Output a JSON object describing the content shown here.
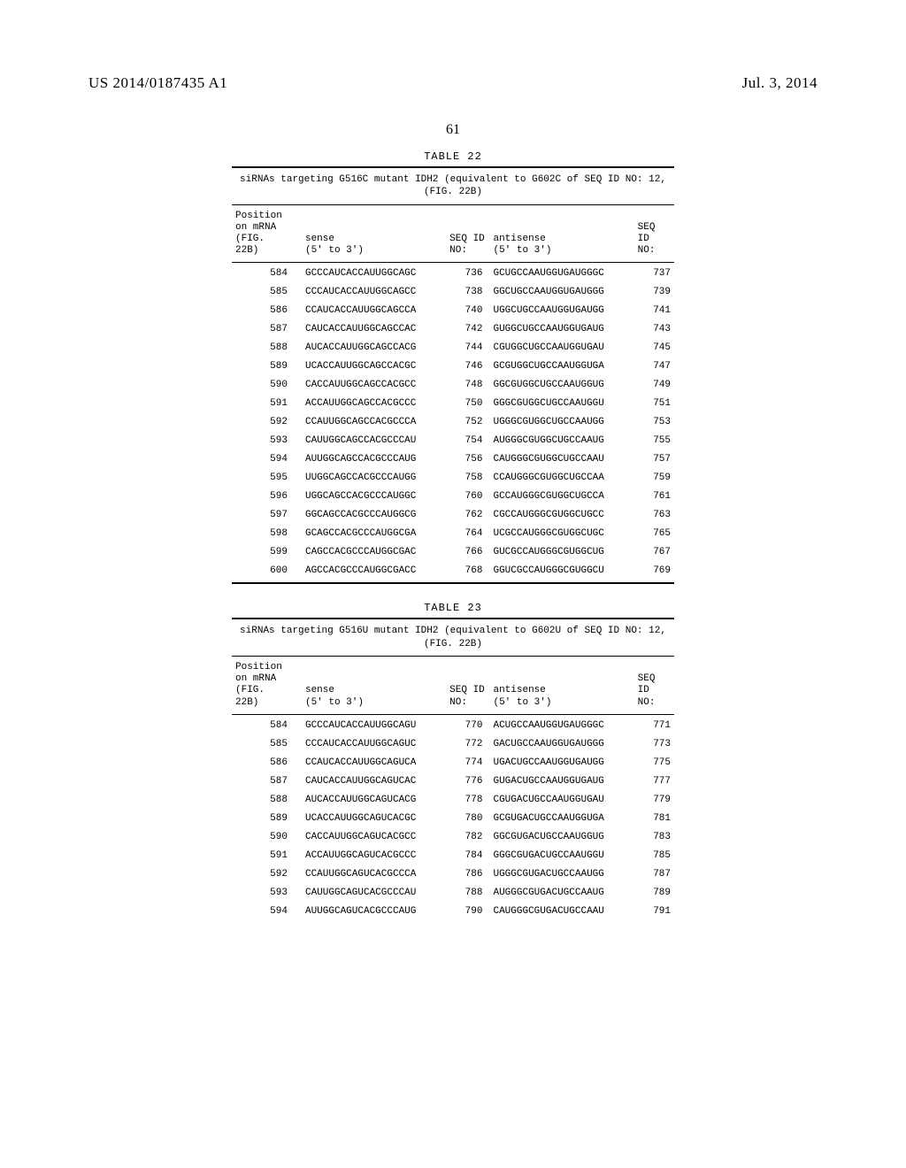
{
  "header": {
    "pub_number": "US 2014/0187435 A1",
    "pub_date": "Jul. 3, 2014"
  },
  "page_number": "61",
  "tables": [
    {
      "title": "TABLE 22",
      "caption": "siRNAs targeting G516C mutant IDH2 (equivalent to G602C of SEQ ID NO: 12, (FIG. 22B)",
      "headers": {
        "pos": "Position\non mRNA\n(FIG.\n22B)",
        "sense": "sense\n(5' to 3')",
        "seqid1": "SEQ ID\nNO:",
        "anti": "antisense\n(5' to 3')",
        "seqid2": "SEQ ID\nNO:"
      },
      "rows": [
        {
          "pos": "584",
          "sense": "GCCCAUCACCAUUGGCAGC",
          "sid1": "736",
          "anti": "GCUGCCAAUGGUGAUGGGC",
          "sid2": "737"
        },
        {
          "pos": "585",
          "sense": "CCCAUCACCAUUGGCAGCC",
          "sid1": "738",
          "anti": "GGCUGCCAAUGGUGAUGGG",
          "sid2": "739"
        },
        {
          "pos": "586",
          "sense": "CCAUCACCAUUGGCAGCCA",
          "sid1": "740",
          "anti": "UGGCUGCCAAUGGUGAUGG",
          "sid2": "741"
        },
        {
          "pos": "587",
          "sense": "CAUCACCAUUGGCAGCCAC",
          "sid1": "742",
          "anti": "GUGGCUGCCAAUGGUGAUG",
          "sid2": "743"
        },
        {
          "pos": "588",
          "sense": "AUCACCAUUGGCAGCCACG",
          "sid1": "744",
          "anti": "CGUGGCUGCCAAUGGUGAU",
          "sid2": "745"
        },
        {
          "pos": "589",
          "sense": "UCACCAUUGGCAGCCACGC",
          "sid1": "746",
          "anti": "GCGUGGCUGCCAAUGGUGA",
          "sid2": "747"
        },
        {
          "pos": "590",
          "sense": "CACCAUUGGCAGCCACGCC",
          "sid1": "748",
          "anti": "GGCGUGGCUGCCAAUGGUG",
          "sid2": "749"
        },
        {
          "pos": "591",
          "sense": "ACCAUUGGCAGCCACGCCC",
          "sid1": "750",
          "anti": "GGGCGUGGCUGCCAAUGGU",
          "sid2": "751"
        },
        {
          "pos": "592",
          "sense": "CCAUUGGCAGCCACGCCCA",
          "sid1": "752",
          "anti": "UGGGCGUGGCUGCCAAUGG",
          "sid2": "753"
        },
        {
          "pos": "593",
          "sense": "CAUUGGCAGCCACGCCCAU",
          "sid1": "754",
          "anti": "AUGGGCGUGGCUGCCAAUG",
          "sid2": "755"
        },
        {
          "pos": "594",
          "sense": "AUUGGCAGCCACGCCCAUG",
          "sid1": "756",
          "anti": "CAUGGGCGUGGCUGCCAAU",
          "sid2": "757"
        },
        {
          "pos": "595",
          "sense": "UUGGCAGCCACGCCCAUGG",
          "sid1": "758",
          "anti": "CCAUGGGCGUGGCUGCCAA",
          "sid2": "759"
        },
        {
          "pos": "596",
          "sense": "UGGCAGCCACGCCCAUGGC",
          "sid1": "760",
          "anti": "GCCAUGGGCGUGGCUGCCA",
          "sid2": "761"
        },
        {
          "pos": "597",
          "sense": "GGCAGCCACGCCCAUGGCG",
          "sid1": "762",
          "anti": "CGCCAUGGGCGUGGCUGCC",
          "sid2": "763"
        },
        {
          "pos": "598",
          "sense": "GCAGCCACGCCCAUGGCGA",
          "sid1": "764",
          "anti": "UCGCCAUGGGCGUGGCUGC",
          "sid2": "765"
        },
        {
          "pos": "599",
          "sense": "CAGCCACGCCCAUGGCGAC",
          "sid1": "766",
          "anti": "GUCGCCAUGGGCGUGGCUG",
          "sid2": "767"
        },
        {
          "pos": "600",
          "sense": "AGCCACGCCCAUGGCGACC",
          "sid1": "768",
          "anti": "GGUCGCCAUGGGCGUGGCU",
          "sid2": "769"
        }
      ],
      "closed": true
    },
    {
      "title": "TABLE 23",
      "caption": "siRNAs targeting G516U mutant IDH2 (equivalent to G602U of SEQ ID NO: 12, (FIG. 22B)",
      "headers": {
        "pos": "Position\non mRNA\n(FIG.\n22B)",
        "sense": "sense\n(5' to 3')",
        "seqid1": "SEQ ID\nNO:",
        "anti": "antisense\n(5' to 3')",
        "seqid2": "SEQ ID\nNO:"
      },
      "rows": [
        {
          "pos": "584",
          "sense": "GCCCAUCACCAUUGGCAGU",
          "sid1": "770",
          "anti": "ACUGCCAAUGGUGAUGGGC",
          "sid2": "771"
        },
        {
          "pos": "585",
          "sense": "CCCAUCACCAUUGGCAGUC",
          "sid1": "772",
          "anti": "GACUGCCAAUGGUGAUGGG",
          "sid2": "773"
        },
        {
          "pos": "586",
          "sense": "CCAUCACCAUUGGCAGUCA",
          "sid1": "774",
          "anti": "UGACUGCCAAUGGUGAUGG",
          "sid2": "775"
        },
        {
          "pos": "587",
          "sense": "CAUCACCAUUGGCAGUCAC",
          "sid1": "776",
          "anti": "GUGACUGCCAAUGGUGAUG",
          "sid2": "777"
        },
        {
          "pos": "588",
          "sense": "AUCACCAUUGGCAGUCACG",
          "sid1": "778",
          "anti": "CGUGACUGCCAAUGGUGAU",
          "sid2": "779"
        },
        {
          "pos": "589",
          "sense": "UCACCAUUGGCAGUCACGC",
          "sid1": "780",
          "anti": "GCGUGACUGCCAAUGGUGA",
          "sid2": "781"
        },
        {
          "pos": "590",
          "sense": "CACCAUUGGCAGUCACGCC",
          "sid1": "782",
          "anti": "GGCGUGACUGCCAAUGGUG",
          "sid2": "783"
        },
        {
          "pos": "591",
          "sense": "ACCAUUGGCAGUCACGCCC",
          "sid1": "784",
          "anti": "GGGCGUGACUGCCAAUGGU",
          "sid2": "785"
        },
        {
          "pos": "592",
          "sense": "CCAUUGGCAGUCACGCCCA",
          "sid1": "786",
          "anti": "UGGGCGUGACUGCCAAUGG",
          "sid2": "787"
        },
        {
          "pos": "593",
          "sense": "CAUUGGCAGUCACGCCCAU",
          "sid1": "788",
          "anti": "AUGGGCGUGACUGCCAAUG",
          "sid2": "789"
        },
        {
          "pos": "594",
          "sense": "AUUGGCAGUCACGCCCAUG",
          "sid1": "790",
          "anti": "CAUGGGCGUGACUGCCAAU",
          "sid2": "791"
        }
      ],
      "closed": false
    }
  ]
}
